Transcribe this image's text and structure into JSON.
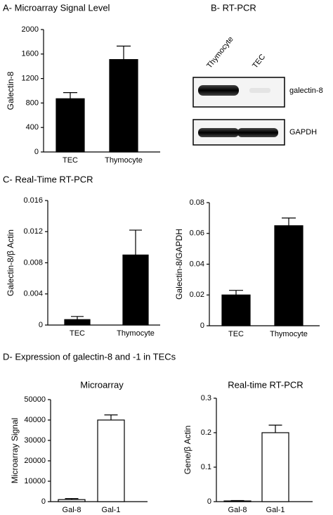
{
  "panel_labels": {
    "b": "B- RT-PCR",
    "c": "C- Real-Time RT-PCR",
    "d": "D- Expression of galectin-8 and -1 in TECs"
  },
  "gel": {
    "lanes": [
      "Thymocyte",
      "TEC"
    ],
    "bands": [
      "galectin-8",
      "GAPDH"
    ]
  },
  "chart_data": [
    {
      "type": "bar",
      "title": "A- Microarray Signal Level",
      "y_label": "Galectin-8",
      "categories": [
        "TEC",
        "Thymocyte"
      ],
      "values": [
        870,
        1510
      ],
      "errors": [
        100,
        220
      ],
      "color": "#000000",
      "ylim": [
        0,
        2000
      ],
      "yticks": [
        0,
        400,
        800,
        1200,
        1600,
        2000
      ]
    },
    {
      "type": "bar",
      "y_label": "Galectin-8/β Actin",
      "categories": [
        "TEC",
        "Thymocyte"
      ],
      "values": [
        0.0007,
        0.009
      ],
      "errors": [
        0.0004,
        0.0032
      ],
      "color": "#000000",
      "ylim": [
        0,
        0.016
      ],
      "yticks": [
        0,
        0.004,
        0.008,
        0.012,
        0.016
      ]
    },
    {
      "type": "bar",
      "y_label": "Galectin-8/GAPDH",
      "categories": [
        "TEC",
        "Thymocyte"
      ],
      "values": [
        0.02,
        0.065
      ],
      "errors": [
        0.003,
        0.005
      ],
      "color": "#000000",
      "ylim": [
        0,
        0.08
      ],
      "yticks": [
        0,
        0.02,
        0.04,
        0.06,
        0.08
      ]
    },
    {
      "type": "bar",
      "title": "Microarray",
      "y_label": "Microarray Signal",
      "categories": [
        "Gal-8",
        "Gal-1"
      ],
      "values": [
        1000,
        40000
      ],
      "errors": [
        500,
        2500
      ],
      "color": "#ffffff",
      "ylim": [
        0,
        50000
      ],
      "yticks": [
        0,
        10000,
        20000,
        30000,
        40000,
        50000
      ]
    },
    {
      "type": "bar",
      "title": "Real-time RT-PCR",
      "y_label": "Gene/β Actin",
      "categories": [
        "Gal-8",
        "Gal-1"
      ],
      "values": [
        0.002,
        0.2
      ],
      "errors": [
        0.001,
        0.022
      ],
      "color": "#ffffff",
      "ylim": [
        0,
        0.3
      ],
      "yticks": [
        0,
        0.1,
        0.2,
        0.3
      ]
    }
  ]
}
